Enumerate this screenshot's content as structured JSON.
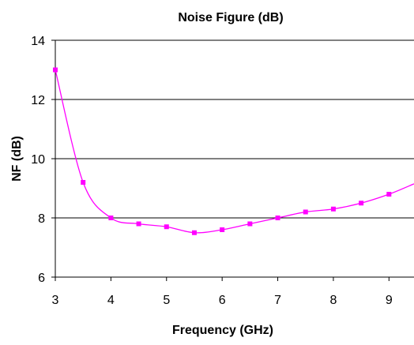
{
  "chart_data": {
    "type": "line",
    "title": "Noise Figure (dB)",
    "xlabel": "Frequency (GHz)",
    "ylabel": "NF (dB)",
    "xlim": [
      3,
      9.45
    ],
    "ylim": [
      6,
      14
    ],
    "xticks": [
      3,
      4,
      5,
      6,
      7,
      8,
      9
    ],
    "yticks": [
      6,
      8,
      10,
      12,
      14
    ],
    "grid": "horizontal",
    "legend": "none",
    "series": [
      {
        "color": "#ff00ff",
        "marker": "square",
        "x": [
          3,
          3.5,
          4,
          4.5,
          5,
          5.5,
          6,
          6.5,
          7,
          7.5,
          8,
          8.5,
          9,
          9.45
        ],
        "y": [
          13.0,
          9.2,
          8.0,
          7.8,
          7.7,
          7.5,
          7.6,
          7.8,
          8.0,
          8.2,
          8.3,
          8.5,
          8.8,
          9.15
        ],
        "marker_points": 13
      }
    ]
  }
}
